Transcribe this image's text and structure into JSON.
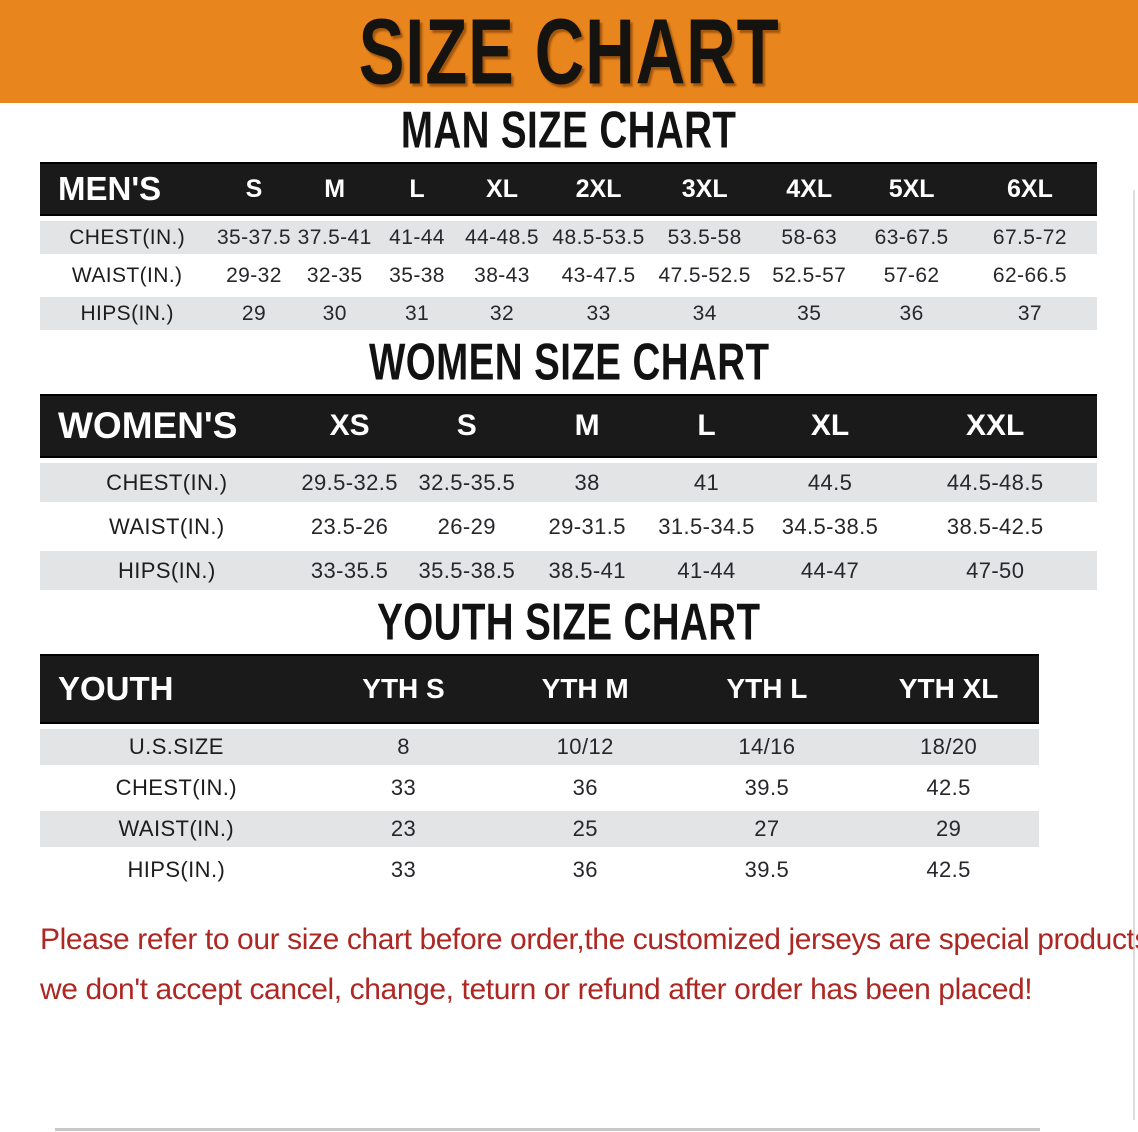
{
  "banner": {
    "title": "SIZE CHART",
    "bg_color": "#E8851D"
  },
  "men": {
    "section_title": "MAN SIZE CHART",
    "header": [
      "MEN'S",
      "S",
      "M",
      "L",
      "XL",
      "2XL",
      "3XL",
      "4XL",
      "5XL",
      "6XL"
    ],
    "rows": [
      {
        "label": "CHEST(IN.)",
        "values": [
          "35-37.5",
          "37.5-41",
          "41-44",
          "44-48.5",
          "48.5-53.5",
          "53.5-58",
          "58-63",
          "63-67.5",
          "67.5-72"
        ]
      },
      {
        "label": "WAIST(IN.)",
        "values": [
          "29-32",
          "32-35",
          "35-38",
          "38-43",
          "43-47.5",
          "47.5-52.5",
          "52.5-57",
          "57-62",
          "62-66.5"
        ]
      },
      {
        "label": "HIPS(IN.)",
        "values": [
          "29",
          "30",
          "31",
          "32",
          "33",
          "34",
          "35",
          "36",
          "37"
        ]
      }
    ]
  },
  "women": {
    "section_title": "WOMEN SIZE CHART",
    "header": [
      "WOMEN'S",
      "XS",
      "S",
      "M",
      "L",
      "XL",
      "XXL"
    ],
    "rows": [
      {
        "label": "CHEST(IN.)",
        "values": [
          "29.5-32.5",
          "32.5-35.5",
          "38",
          "41",
          "44.5",
          "44.5-48.5"
        ]
      },
      {
        "label": "WAIST(IN.)",
        "values": [
          "23.5-26",
          "26-29",
          "29-31.5",
          "31.5-34.5",
          "34.5-38.5",
          "38.5-42.5"
        ]
      },
      {
        "label": "HIPS(IN.)",
        "values": [
          "33-35.5",
          "35.5-38.5",
          "38.5-41",
          "41-44",
          "44-47",
          "47-50"
        ]
      }
    ]
  },
  "youth": {
    "section_title": "YOUTH SIZE CHART",
    "header": [
      "YOUTH",
      "YTH S",
      "YTH M",
      "YTH L",
      "YTH XL"
    ],
    "rows": [
      {
        "label": "U.S.SIZE",
        "values": [
          "8",
          "10/12",
          "14/16",
          "18/20"
        ]
      },
      {
        "label": "CHEST(IN.)",
        "values": [
          "33",
          "36",
          "39.5",
          "42.5"
        ]
      },
      {
        "label": "WAIST(IN.)",
        "values": [
          "23",
          "25",
          "27",
          "29"
        ]
      },
      {
        "label": "HIPS(IN.)",
        "values": [
          "33",
          "36",
          "39.5",
          "42.5"
        ]
      }
    ]
  },
  "disclaimer": {
    "lines": [
      "Please refer to our size chart before order,the customized jerseys are special products,",
      "we don't accept cancel, change, teturn or refund after order has been placed!"
    ],
    "color": "#AD2723"
  },
  "colors": {
    "banner_orange": "#E8851D",
    "table_header_band": "#1A1A1A",
    "row_stripe_gray": "#E2E4E6",
    "disclaimer_red": "#AD2723"
  }
}
